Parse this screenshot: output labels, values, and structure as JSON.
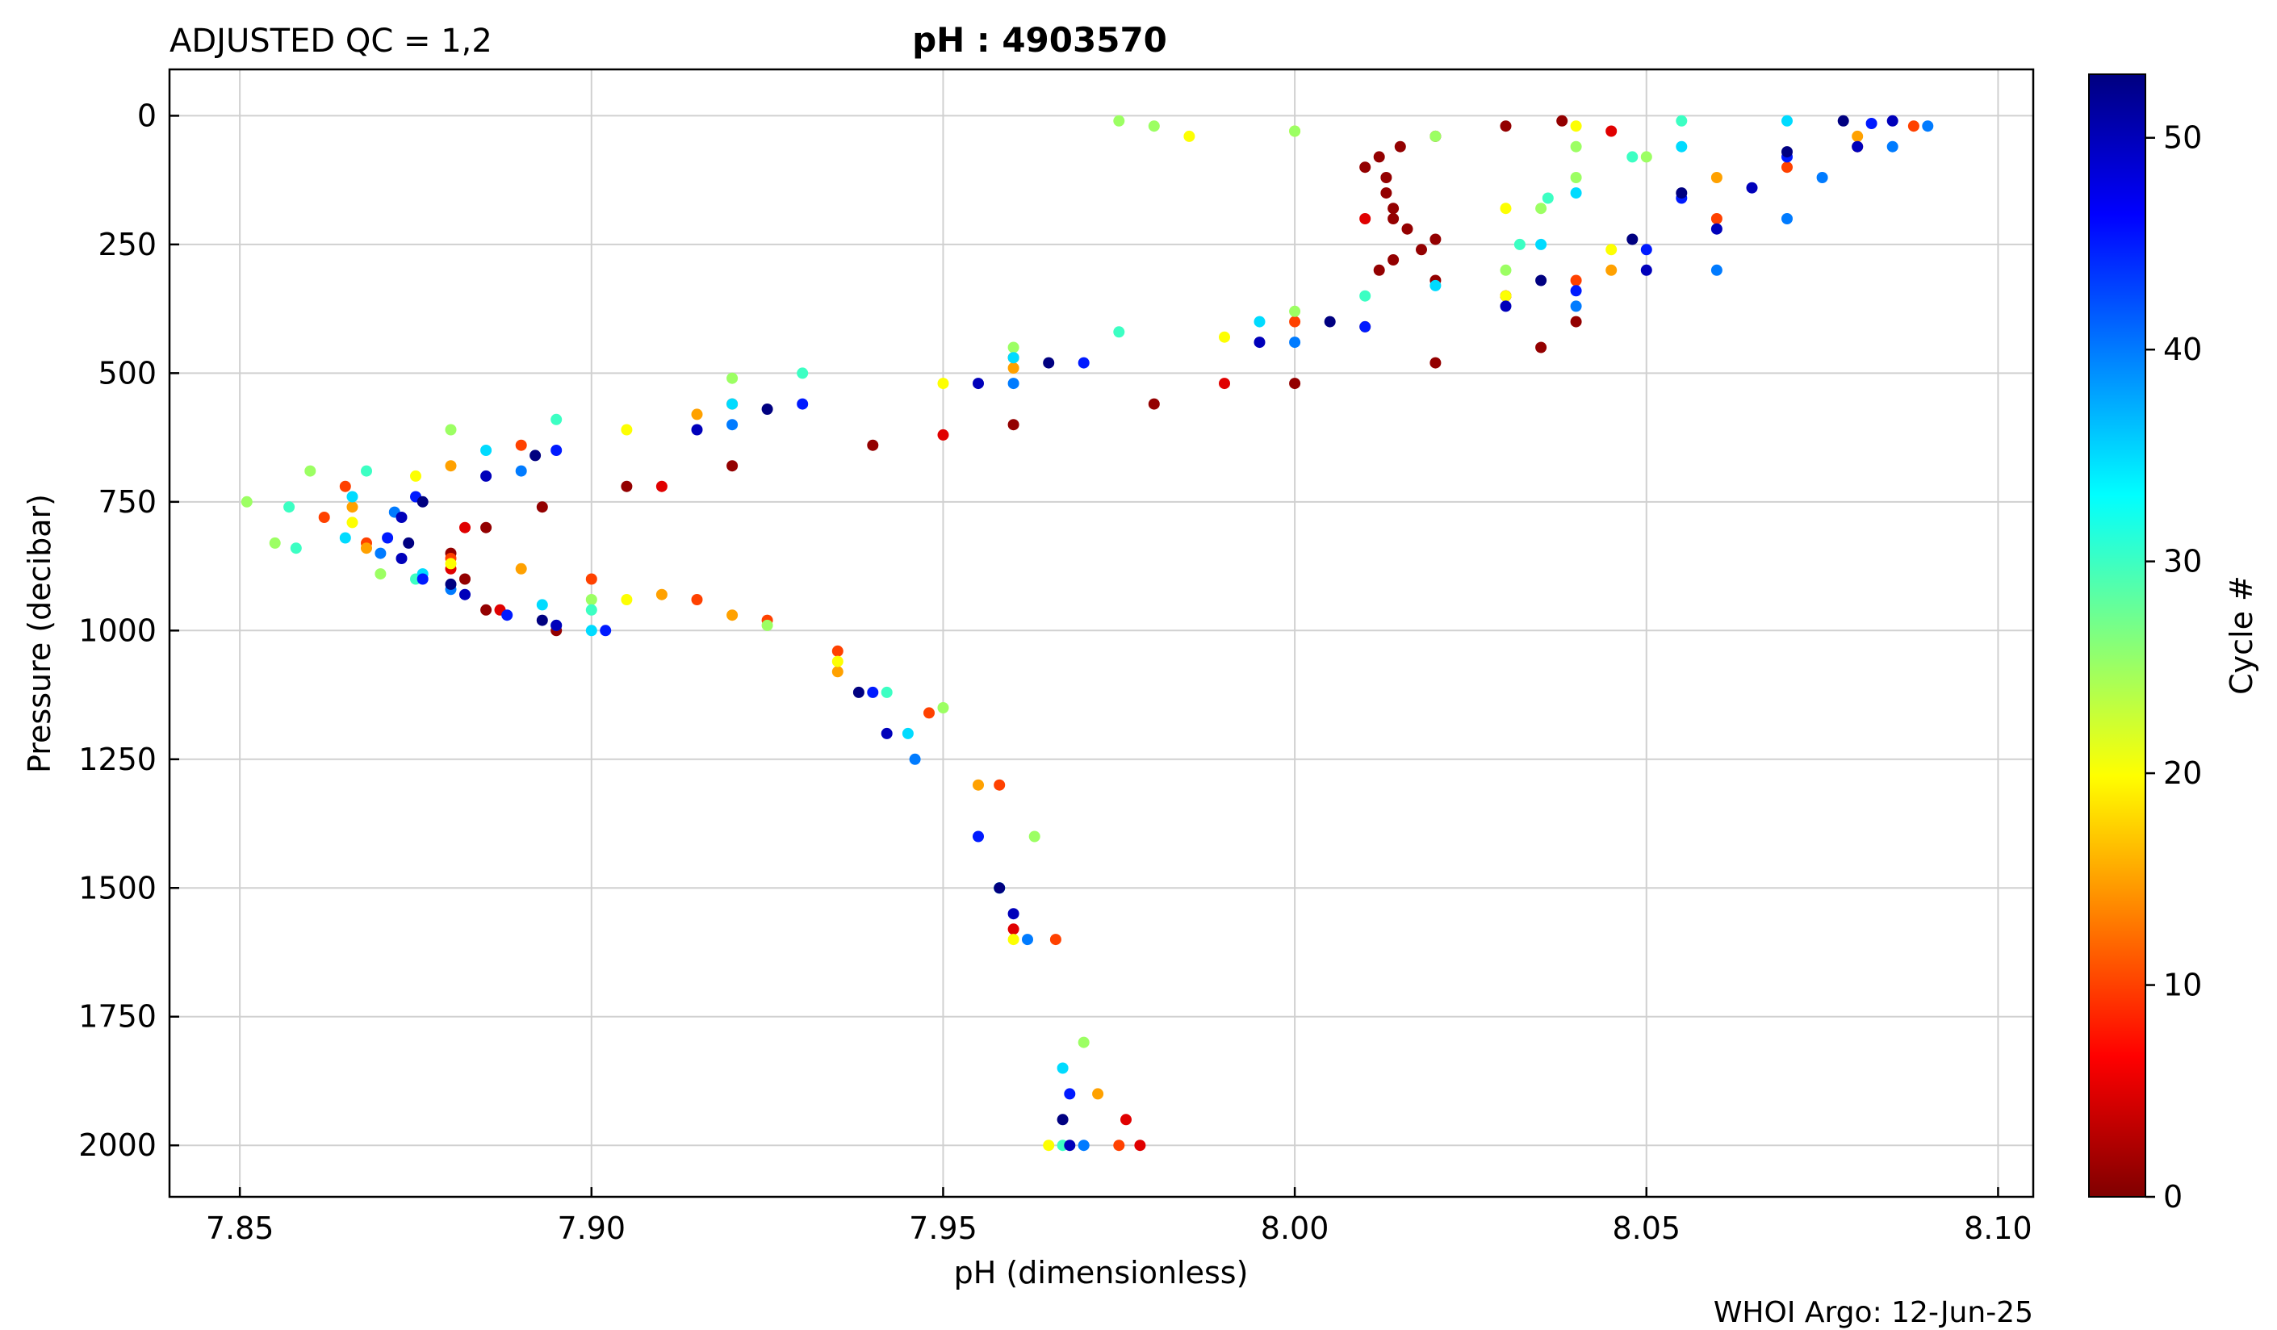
{
  "header": {
    "qc_label": "ADJUSTED QC = 1,2",
    "title": "pH : 4903570"
  },
  "footer": {
    "credit": "WHOI Argo: 12-Jun-25"
  },
  "colors": {
    "background": "#ffffff",
    "grid": "#d0d0d0",
    "colormap": "jet"
  },
  "chart_data": {
    "type": "scatter",
    "title": "pH : 4903570",
    "xlabel": "pH  (dimensionless)",
    "ylabel": "Pressure  (decibar)",
    "xlim": [
      7.84,
      8.105
    ],
    "ylim": [
      2100,
      -90
    ],
    "y_inverted": true,
    "xticks": [
      7.85,
      7.9,
      7.95,
      8.0,
      8.05,
      8.1
    ],
    "xtick_labels": [
      "7.85",
      "7.90",
      "7.95",
      "8.00",
      "8.05",
      "8.10"
    ],
    "yticks": [
      0,
      250,
      500,
      750,
      1000,
      1250,
      1500,
      1750,
      2000
    ],
    "ytick_labels": [
      "0",
      "250",
      "500",
      "750",
      "1000",
      "1250",
      "1500",
      "1750",
      "2000"
    ],
    "grid": true,
    "colorbar": {
      "label": "Cycle #",
      "range": [
        0,
        53
      ],
      "ticks": [
        0,
        10,
        20,
        30,
        40,
        50
      ],
      "tick_labels": [
        "0",
        "10",
        "20",
        "30",
        "40",
        "50"
      ],
      "colormap": "jet_reversed"
    },
    "series": [
      {
        "cycle": 1,
        "points": [
          [
            8.038,
            10
          ],
          [
            8.03,
            20
          ],
          [
            8.02,
            40
          ],
          [
            8.015,
            60
          ],
          [
            8.012,
            80
          ],
          [
            8.01,
            100
          ],
          [
            8.013,
            120
          ],
          [
            8.013,
            150
          ],
          [
            8.014,
            180
          ],
          [
            8.014,
            200
          ],
          [
            8.016,
            220
          ],
          [
            8.02,
            240
          ],
          [
            8.018,
            260
          ],
          [
            8.014,
            280
          ],
          [
            8.012,
            300
          ],
          [
            8.02,
            320
          ],
          [
            8.03,
            350
          ],
          [
            8.04,
            400
          ],
          [
            8.035,
            450
          ],
          [
            8.02,
            480
          ],
          [
            8.0,
            520
          ],
          [
            7.98,
            560
          ],
          [
            7.96,
            600
          ],
          [
            7.94,
            640
          ],
          [
            7.92,
            680
          ],
          [
            7.905,
            720
          ],
          [
            7.893,
            760
          ],
          [
            7.885,
            800
          ],
          [
            7.88,
            850
          ],
          [
            7.882,
            900
          ],
          [
            7.885,
            960
          ],
          [
            7.895,
            1000
          ]
        ]
      },
      {
        "cycle": 5,
        "points": [
          [
            8.045,
            30
          ],
          [
            8.01,
            200
          ],
          [
            8.03,
            350
          ],
          [
            7.99,
            520
          ],
          [
            7.95,
            620
          ],
          [
            7.91,
            720
          ],
          [
            7.882,
            800
          ],
          [
            7.88,
            880
          ],
          [
            7.887,
            960
          ],
          [
            7.96,
            1580
          ],
          [
            7.976,
            1950
          ],
          [
            7.978,
            2000
          ]
        ]
      },
      {
        "cycle": 10,
        "points": [
          [
            8.088,
            20
          ],
          [
            8.08,
            60
          ],
          [
            8.07,
            100
          ],
          [
            8.06,
            200
          ],
          [
            8.04,
            320
          ],
          [
            8.0,
            400
          ],
          [
            7.96,
            470
          ],
          [
            7.92,
            560
          ],
          [
            7.89,
            640
          ],
          [
            7.865,
            720
          ],
          [
            7.862,
            780
          ],
          [
            7.868,
            830
          ],
          [
            7.88,
            860
          ],
          [
            7.9,
            900
          ],
          [
            7.915,
            940
          ],
          [
            7.925,
            980
          ],
          [
            7.935,
            1040
          ],
          [
            7.948,
            1160
          ],
          [
            7.958,
            1300
          ],
          [
            7.966,
            1600
          ],
          [
            7.975,
            2000
          ]
        ]
      },
      {
        "cycle": 15,
        "points": [
          [
            8.08,
            40
          ],
          [
            8.06,
            120
          ],
          [
            8.045,
            300
          ],
          [
            8.01,
            410
          ],
          [
            7.96,
            490
          ],
          [
            7.915,
            580
          ],
          [
            7.88,
            680
          ],
          [
            7.866,
            760
          ],
          [
            7.868,
            840
          ],
          [
            7.89,
            880
          ],
          [
            7.91,
            930
          ],
          [
            7.92,
            970
          ],
          [
            7.935,
            1080
          ],
          [
            7.955,
            1300
          ],
          [
            7.972,
            1900
          ]
        ]
      },
      {
        "cycle": 20,
        "points": [
          [
            8.04,
            20
          ],
          [
            8.0,
            30
          ],
          [
            7.985,
            40
          ],
          [
            8.03,
            180
          ],
          [
            8.045,
            260
          ],
          [
            8.03,
            350
          ],
          [
            7.99,
            430
          ],
          [
            7.95,
            520
          ],
          [
            7.905,
            610
          ],
          [
            7.875,
            700
          ],
          [
            7.866,
            790
          ],
          [
            7.88,
            870
          ],
          [
            7.905,
            940
          ],
          [
            7.935,
            1060
          ],
          [
            7.96,
            1600
          ],
          [
            7.965,
            2000
          ]
        ]
      },
      {
        "cycle": 25,
        "points": [
          [
            7.975,
            10
          ],
          [
            7.98,
            20
          ],
          [
            8.0,
            30
          ],
          [
            8.02,
            40
          ],
          [
            8.04,
            60
          ],
          [
            8.05,
            80
          ],
          [
            8.04,
            120
          ],
          [
            8.035,
            180
          ],
          [
            8.03,
            300
          ],
          [
            8.0,
            380
          ],
          [
            7.96,
            450
          ],
          [
            7.92,
            510
          ],
          [
            7.88,
            610
          ],
          [
            7.86,
            690
          ],
          [
            7.851,
            750
          ],
          [
            7.855,
            830
          ],
          [
            7.87,
            890
          ],
          [
            7.9,
            940
          ],
          [
            7.925,
            990
          ],
          [
            7.95,
            1150
          ],
          [
            7.963,
            1400
          ],
          [
            7.97,
            1800
          ]
        ]
      },
      {
        "cycle": 30,
        "points": [
          [
            8.055,
            10
          ],
          [
            8.048,
            80
          ],
          [
            8.036,
            160
          ],
          [
            8.032,
            250
          ],
          [
            8.01,
            350
          ],
          [
            7.975,
            420
          ],
          [
            7.93,
            500
          ],
          [
            7.895,
            590
          ],
          [
            7.868,
            690
          ],
          [
            7.857,
            760
          ],
          [
            7.858,
            840
          ],
          [
            7.875,
            900
          ],
          [
            7.9,
            960
          ],
          [
            7.942,
            1120
          ],
          [
            7.958,
            1500
          ],
          [
            7.967,
            2000
          ]
        ]
      },
      {
        "cycle": 35,
        "points": [
          [
            8.07,
            10
          ],
          [
            8.055,
            60
          ],
          [
            8.04,
            150
          ],
          [
            8.035,
            250
          ],
          [
            8.02,
            330
          ],
          [
            7.995,
            400
          ],
          [
            7.96,
            470
          ],
          [
            7.92,
            560
          ],
          [
            7.885,
            650
          ],
          [
            7.866,
            740
          ],
          [
            7.865,
            820
          ],
          [
            7.876,
            890
          ],
          [
            7.893,
            950
          ],
          [
            7.9,
            1000
          ],
          [
            7.945,
            1200
          ],
          [
            7.958,
            1500
          ],
          [
            7.967,
            1850
          ]
        ]
      },
      {
        "cycle": 40,
        "points": [
          [
            8.09,
            20
          ],
          [
            8.085,
            60
          ],
          [
            8.075,
            120
          ],
          [
            8.07,
            200
          ],
          [
            8.06,
            300
          ],
          [
            8.04,
            370
          ],
          [
            8.0,
            440
          ],
          [
            7.96,
            520
          ],
          [
            7.92,
            600
          ],
          [
            7.89,
            690
          ],
          [
            7.872,
            770
          ],
          [
            7.87,
            850
          ],
          [
            7.88,
            920
          ],
          [
            7.895,
            990
          ],
          [
            7.946,
            1250
          ],
          [
            7.962,
            1600
          ],
          [
            7.97,
            2000
          ]
        ]
      },
      {
        "cycle": 45,
        "points": [
          [
            8.082,
            15
          ],
          [
            8.07,
            80
          ],
          [
            8.055,
            160
          ],
          [
            8.05,
            260
          ],
          [
            8.04,
            340
          ],
          [
            8.01,
            410
          ],
          [
            7.97,
            480
          ],
          [
            7.93,
            560
          ],
          [
            7.895,
            650
          ],
          [
            7.875,
            740
          ],
          [
            7.871,
            820
          ],
          [
            7.876,
            900
          ],
          [
            7.888,
            970
          ],
          [
            7.902,
            1000
          ],
          [
            7.94,
            1120
          ],
          [
            7.955,
            1400
          ],
          [
            7.968,
            1900
          ]
        ]
      },
      {
        "cycle": 50,
        "points": [
          [
            8.085,
            10
          ],
          [
            8.08,
            60
          ],
          [
            8.065,
            140
          ],
          [
            8.06,
            220
          ],
          [
            8.05,
            300
          ],
          [
            8.03,
            370
          ],
          [
            7.995,
            440
          ],
          [
            7.955,
            520
          ],
          [
            7.915,
            610
          ],
          [
            7.885,
            700
          ],
          [
            7.873,
            780
          ],
          [
            7.873,
            860
          ],
          [
            7.882,
            930
          ],
          [
            7.895,
            990
          ],
          [
            7.942,
            1200
          ],
          [
            7.96,
            1550
          ],
          [
            7.968,
            2000
          ]
        ]
      },
      {
        "cycle": 53,
        "points": [
          [
            8.078,
            10
          ],
          [
            8.07,
            70
          ],
          [
            8.055,
            150
          ],
          [
            8.048,
            240
          ],
          [
            8.035,
            320
          ],
          [
            8.005,
            400
          ],
          [
            7.965,
            480
          ],
          [
            7.925,
            570
          ],
          [
            7.892,
            660
          ],
          [
            7.876,
            750
          ],
          [
            7.874,
            830
          ],
          [
            7.88,
            910
          ],
          [
            7.893,
            980
          ],
          [
            7.938,
            1120
          ],
          [
            7.958,
            1500
          ],
          [
            7.967,
            1950
          ]
        ]
      }
    ]
  }
}
